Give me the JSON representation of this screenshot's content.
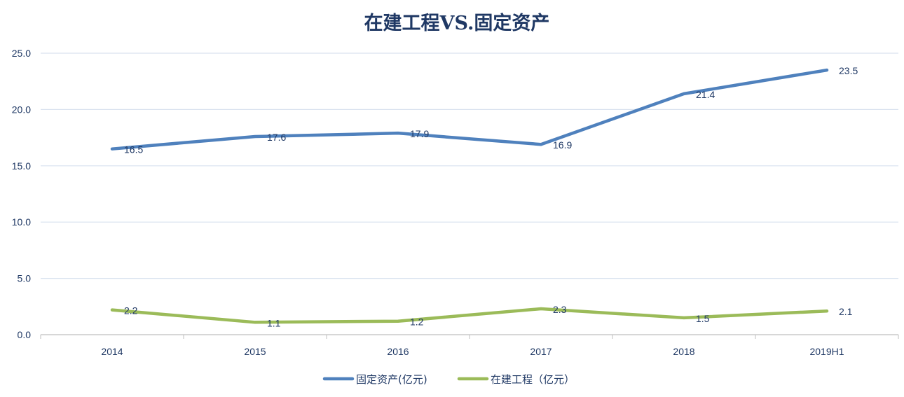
{
  "chart_data": {
    "type": "line",
    "title": "在建工程VS.固定资产",
    "categories": [
      "2014",
      "2015",
      "2016",
      "2017",
      "2018",
      "2019H1"
    ],
    "ylim": [
      0,
      25
    ],
    "y_ticks": [
      "0.0",
      "5.0",
      "10.0",
      "15.0",
      "20.0",
      "25.0"
    ],
    "grid": true,
    "legend_position": "bottom",
    "series": [
      {
        "name": "固定资产(亿元)",
        "color": "#4f81bd",
        "values": [
          16.5,
          17.6,
          17.9,
          16.9,
          21.4,
          23.5
        ],
        "labels": [
          "16.5",
          "17.6",
          "17.9",
          "16.9",
          "21.4",
          "23.5"
        ]
      },
      {
        "name": "在建工程（亿元）",
        "color": "#9bbb59",
        "values": [
          2.2,
          1.1,
          1.2,
          2.3,
          1.5,
          2.1
        ],
        "labels": [
          "2.2",
          "1.1",
          "1.2",
          "2.3",
          "1.5",
          "2.1"
        ]
      }
    ]
  }
}
